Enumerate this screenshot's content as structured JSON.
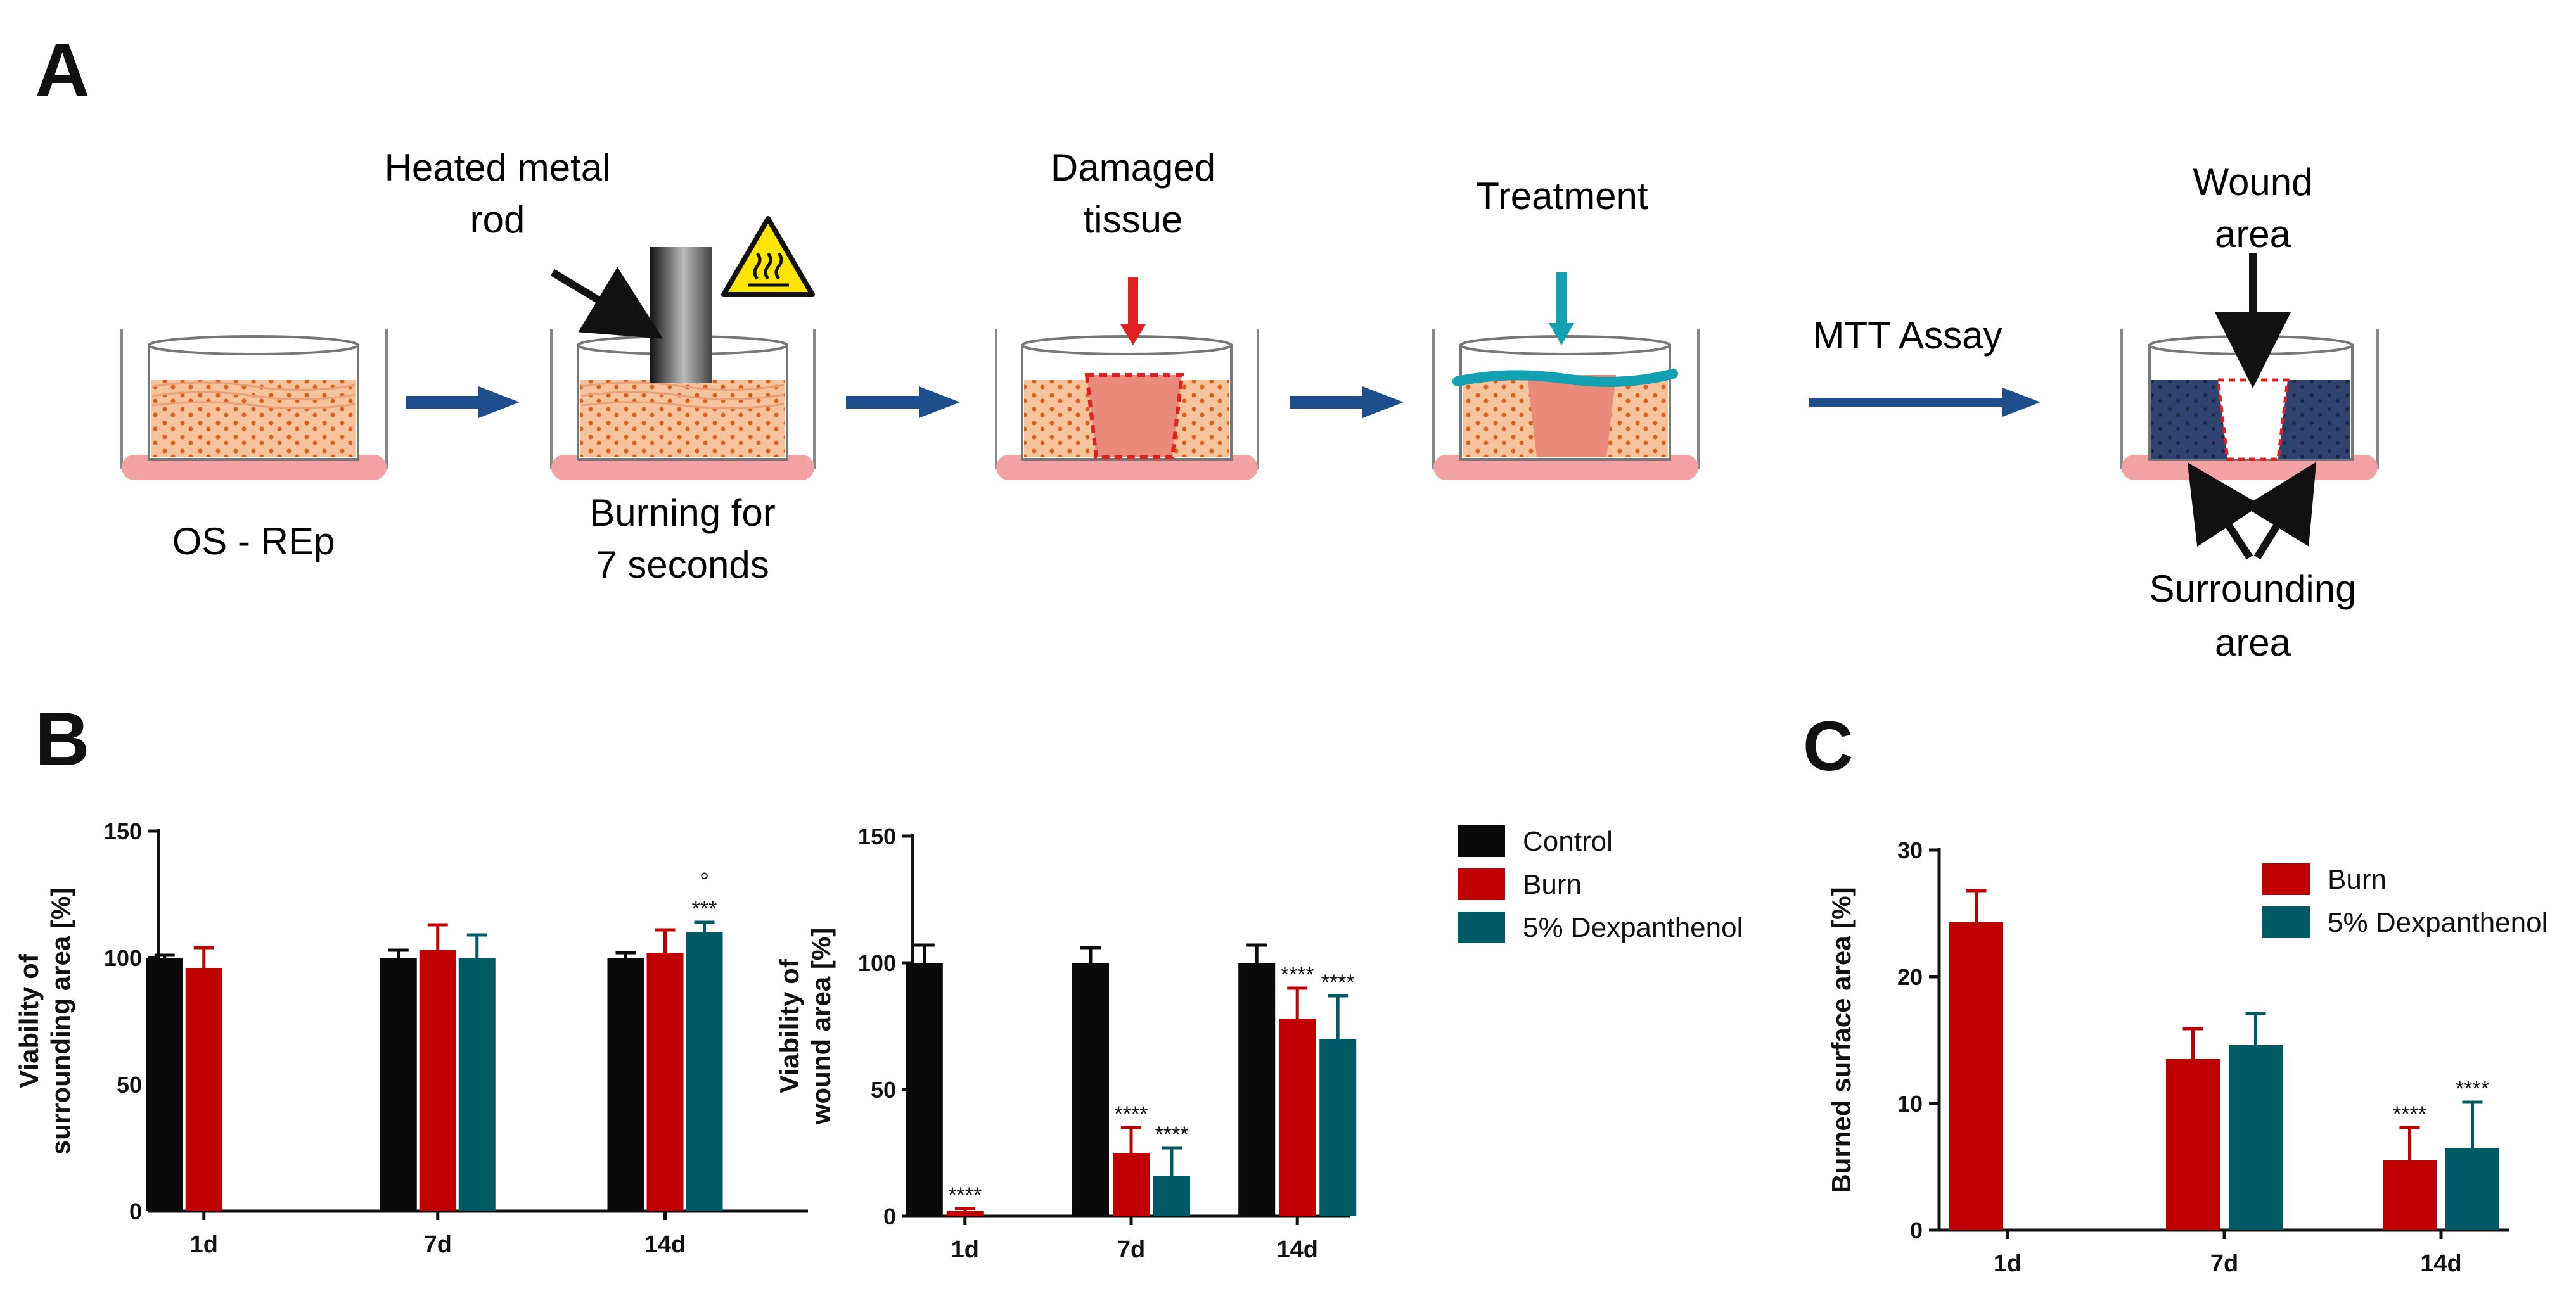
{
  "panels": {
    "a": "A",
    "b": "B",
    "c": "C"
  },
  "colors": {
    "control": "#0a0a0a",
    "burn": "#c00000",
    "dexpanthenol": "#005a66",
    "arrow": "#1f4e8c",
    "red_arrow": "#e02020",
    "teal_arrow": "#13a0b0",
    "tissue": "#f5b48a",
    "dish_base": "#f2a2a2",
    "assay_tissue": "#2f4370",
    "warning": "#ffe600"
  },
  "schematic": {
    "step1_label": "OS - REp",
    "rod_label_line1": "Heated metal",
    "rod_label_line2": "rod",
    "step2_label_line1": "Burning for",
    "step2_label_line2": "7 seconds",
    "step3_label_line1": "Damaged",
    "step3_label_line2": "tissue",
    "step4_label": "Treatment",
    "assay_label": "MTT Assay",
    "wound_label_line1": "Wound",
    "wound_label_line2": "area",
    "surround_label_line1": "Surrounding",
    "surround_label_line2": "area",
    "icons": [
      "right-arrow-icon",
      "heated-rod-icon",
      "hot-surface-warning-icon",
      "down-arrow-icon",
      "culture-dish-icon"
    ]
  },
  "chart_data": [
    {
      "id": "b1",
      "type": "bar",
      "title": "",
      "ylabel_line1": "Viability of",
      "ylabel_line2": "surrounding area [%]",
      "xlabel": "",
      "categories": [
        "1d",
        "7d",
        "14d"
      ],
      "ylim": [
        0,
        150
      ],
      "yticks": [
        0,
        50,
        100,
        150
      ],
      "series": [
        {
          "name": "Control",
          "color_key": "control",
          "values": [
            100,
            100,
            100
          ],
          "errors": [
            1,
            3,
            2
          ],
          "annotations": [
            "",
            "",
            ""
          ]
        },
        {
          "name": "Burn",
          "color_key": "burn",
          "values": [
            96,
            103,
            102
          ],
          "errors": [
            8,
            10,
            9
          ],
          "annotations": [
            "",
            "",
            ""
          ]
        },
        {
          "name": "5% Dexpanthenol",
          "color_key": "dexpanthenol",
          "values": [
            null,
            100,
            110
          ],
          "errors": [
            0,
            9,
            4
          ],
          "annotations": [
            "",
            "",
            "***"
          ],
          "annotations2": [
            "",
            "",
            "°"
          ]
        }
      ]
    },
    {
      "id": "b2",
      "type": "bar",
      "title": "",
      "ylabel_line1": "Viability of",
      "ylabel_line2": "wound area [%]",
      "xlabel": "",
      "categories": [
        "1d",
        "7d",
        "14d"
      ],
      "ylim": [
        0,
        150
      ],
      "yticks": [
        0,
        50,
        100,
        150
      ],
      "legend": [
        "Control",
        "Burn",
        "5% Dexpanthenol"
      ],
      "series": [
        {
          "name": "Control",
          "color_key": "control",
          "values": [
            100,
            100,
            100
          ],
          "errors": [
            7,
            6,
            7
          ],
          "annotations": [
            "",
            "",
            ""
          ]
        },
        {
          "name": "Burn",
          "color_key": "burn",
          "values": [
            2,
            25,
            78
          ],
          "errors": [
            1,
            10,
            12
          ],
          "annotations": [
            "****",
            "****",
            "****"
          ]
        },
        {
          "name": "5% Dexpanthenol",
          "color_key": "dexpanthenol",
          "values": [
            null,
            16,
            70
          ],
          "errors": [
            0,
            11,
            17
          ],
          "annotations": [
            "",
            "****",
            "****"
          ]
        }
      ]
    },
    {
      "id": "c",
      "type": "bar",
      "title": "",
      "ylabel_line1": "",
      "ylabel_line2": "Burned surface area [%]",
      "xlabel": "",
      "categories": [
        "1d",
        "7d",
        "14d"
      ],
      "ylim": [
        0,
        30
      ],
      "yticks": [
        0,
        10,
        20,
        30
      ],
      "legend": [
        "Burn",
        "5% Dexpanthenol"
      ],
      "series": [
        {
          "name": "Burn",
          "color_key": "burn",
          "values": [
            24.3,
            13.5,
            5.5
          ],
          "errors": [
            2.5,
            2.4,
            2.6
          ],
          "annotations": [
            "",
            "",
            "****"
          ]
        },
        {
          "name": "5% Dexpanthenol",
          "color_key": "dexpanthenol",
          "values": [
            null,
            14.6,
            6.5
          ],
          "errors": [
            0,
            2.5,
            3.6
          ],
          "annotations": [
            "",
            "",
            "****"
          ]
        }
      ]
    }
  ]
}
